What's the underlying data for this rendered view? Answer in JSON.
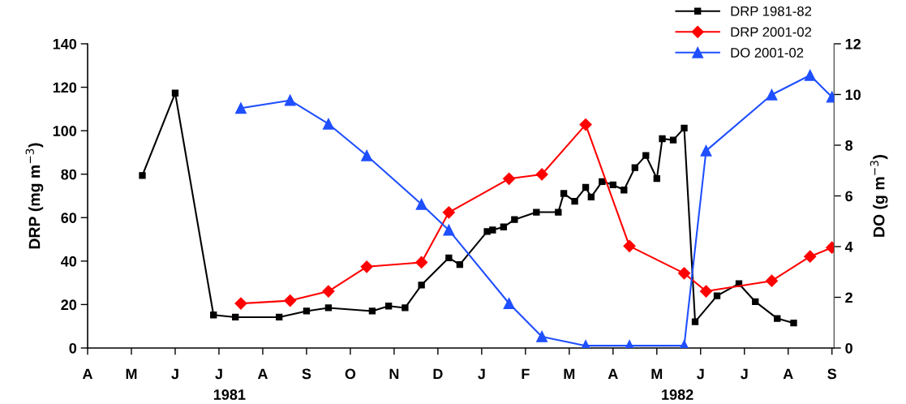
{
  "chart_data": {
    "type": "line",
    "categories": [
      "A",
      null,
      null,
      null,
      null,
      null,
      null,
      null,
      "M",
      null,
      null,
      null,
      null,
      null,
      null,
      null,
      "J",
      null,
      null,
      null,
      null,
      null,
      null,
      null,
      "J",
      null,
      null,
      null,
      null,
      null,
      null,
      null,
      "A",
      null,
      null,
      null,
      null,
      null,
      null,
      null,
      "S",
      null,
      null,
      null,
      null,
      null,
      null,
      null,
      "O",
      null,
      null,
      null,
      null,
      null,
      null,
      null,
      "N",
      null,
      null,
      null,
      null,
      null,
      null,
      null,
      "D",
      null,
      null,
      null,
      null,
      null,
      null,
      null,
      "J",
      null,
      null,
      null,
      null,
      null,
      null,
      null,
      "F",
      null,
      null,
      null,
      null,
      null,
      null,
      null,
      "M",
      null,
      null,
      null,
      null,
      null,
      null,
      null,
      "A",
      null,
      null,
      null,
      null,
      null,
      null,
      null,
      "M",
      null,
      null,
      null,
      null,
      null,
      null,
      null,
      "J",
      null,
      null,
      null,
      null,
      null,
      null,
      null,
      "J",
      null,
      null,
      null,
      null,
      null,
      null,
      null,
      "A",
      null,
      null,
      null,
      null,
      null,
      null,
      null,
      "S"
    ],
    "ylim": [
      0,
      140
    ],
    "yticks": [
      0,
      20,
      40,
      60,
      80,
      100,
      120,
      140
    ],
    "y2lim": [
      0,
      12
    ],
    "y2ticks": [
      0,
      2,
      4,
      6,
      8,
      10,
      12
    ],
    "ylabel": "DRP (mg m$^{−3}$)",
    "y2label": "DO (g m$^{−3}$)",
    "annotations": [
      "1981",
      "1982"
    ],
    "legend": "top right",
    "grid": false,
    "series": [
      {
        "name": "DRP 1981-82",
        "color": "#000000",
        "marker": "square",
        "values": [
          null,
          null,
          null,
          null,
          null,
          null,
          null,
          null,
          null,
          null,
          79.4,
          null,
          null,
          null,
          null,
          null,
          117.3,
          null,
          null,
          null,
          null,
          null,
          null,
          15.2,
          null,
          null,
          null,
          14.2,
          null,
          null,
          null,
          null,
          null,
          null,
          null,
          14.2,
          null,
          null,
          null,
          null,
          17.0,
          null,
          null,
          null,
          18.5,
          null,
          null,
          null,
          null,
          null,
          null,
          null,
          17.0,
          null,
          null,
          19.3,
          null,
          null,
          18.5,
          null,
          null,
          29.0,
          null,
          null,
          null,
          null,
          41.5,
          null,
          38.4,
          null,
          null,
          null,
          null,
          53.6,
          54.3,
          null,
          55.7,
          null,
          59.1,
          null,
          null,
          null,
          62.5,
          null,
          null,
          null,
          62.5,
          71.1,
          null,
          67.5,
          null,
          73.9,
          69.5,
          null,
          76.6,
          null,
          75.1,
          null,
          72.7,
          null,
          83.0,
          null,
          88.6,
          null,
          78.0,
          96.3,
          null,
          95.7,
          null,
          101.2,
          null,
          12.1,
          null,
          null,
          null,
          24.0,
          null,
          null,
          null,
          29.6,
          null,
          null,
          21.3,
          null,
          null,
          null,
          13.6,
          null,
          null,
          11.5,
          null,
          null,
          null,
          null,
          null,
          null,
          null
        ]
      },
      {
        "name": "DRP 2001-02",
        "color": "#ff0000",
        "marker": "diamond",
        "values": [
          null,
          null,
          null,
          null,
          null,
          null,
          null,
          null,
          null,
          null,
          null,
          null,
          null,
          null,
          null,
          null,
          null,
          null,
          null,
          null,
          null,
          null,
          null,
          null,
          null,
          null,
          null,
          null,
          20.5,
          null,
          null,
          null,
          null,
          null,
          null,
          null,
          null,
          21.8,
          null,
          null,
          null,
          null,
          null,
          null,
          26.1,
          null,
          null,
          null,
          null,
          null,
          null,
          37.4,
          null,
          null,
          null,
          null,
          null,
          null,
          null,
          null,
          null,
          39.4,
          null,
          null,
          null,
          null,
          62.4,
          null,
          null,
          null,
          null,
          null,
          null,
          null,
          null,
          null,
          null,
          77.9,
          null,
          null,
          null,
          null,
          null,
          79.9,
          null,
          null,
          null,
          null,
          null,
          null,
          null,
          102.8,
          null,
          null,
          null,
          null,
          null,
          null,
          null,
          46.9,
          null,
          null,
          null,
          null,
          null,
          null,
          null,
          null,
          null,
          34.4,
          null,
          null,
          null,
          26.1,
          null,
          null,
          null,
          null,
          null,
          null,
          null,
          null,
          null,
          null,
          null,
          30.9,
          null,
          null,
          null,
          null,
          null,
          null,
          42.1,
          null,
          null,
          null,
          46.2
        ]
      },
      {
        "name": "DO 2001-02",
        "color": "#1f4fff",
        "marker": "triangle",
        "axis": "y2",
        "values": [
          null,
          null,
          null,
          null,
          null,
          null,
          null,
          null,
          null,
          null,
          null,
          null,
          null,
          null,
          null,
          null,
          null,
          null,
          null,
          null,
          null,
          null,
          null,
          null,
          null,
          null,
          null,
          null,
          9.46,
          null,
          null,
          null,
          null,
          null,
          null,
          null,
          null,
          9.77,
          null,
          null,
          null,
          null,
          null,
          null,
          8.84,
          null,
          null,
          null,
          null,
          null,
          null,
          7.59,
          null,
          null,
          null,
          null,
          null,
          null,
          null,
          null,
          null,
          5.67,
          null,
          null,
          null,
          null,
          4.65,
          null,
          null,
          null,
          null,
          null,
          null,
          null,
          null,
          null,
          null,
          1.76,
          null,
          null,
          null,
          null,
          null,
          0.45,
          null,
          null,
          null,
          null,
          null,
          null,
          null,
          0.09,
          null,
          null,
          null,
          null,
          null,
          null,
          null,
          0.09,
          null,
          null,
          null,
          null,
          null,
          null,
          null,
          null,
          null,
          0.09,
          null,
          null,
          null,
          7.78,
          null,
          null,
          null,
          null,
          null,
          null,
          null,
          null,
          null,
          null,
          null,
          9.99,
          null,
          null,
          null,
          null,
          null,
          null,
          10.76,
          null,
          null,
          null,
          9.9
        ]
      }
    ]
  }
}
